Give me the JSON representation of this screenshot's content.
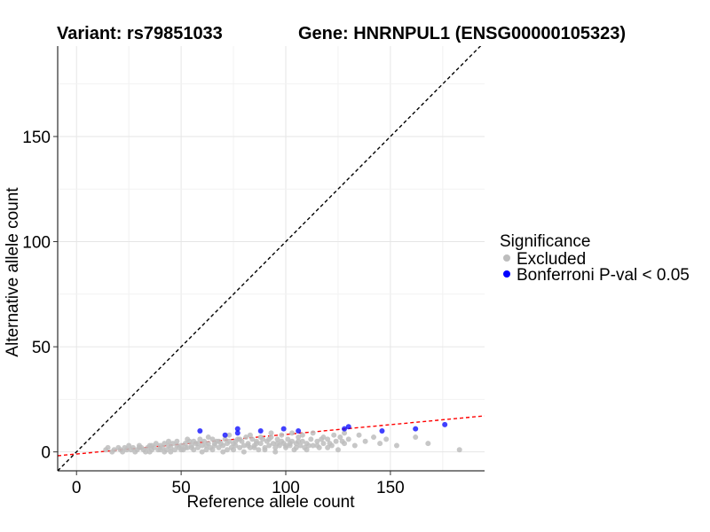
{
  "chart_data": {
    "type": "scatter",
    "title_left": "Variant: rs79851033",
    "title_right": "Gene: HNRNPUL1 (ENSG00000105323)",
    "xlabel": "Reference allele count",
    "ylabel": "Alternative allele count",
    "xlim": [
      -9,
      195
    ],
    "ylim": [
      -9,
      193
    ],
    "x_ticks": [
      0,
      50,
      100,
      150
    ],
    "y_ticks": [
      0,
      50,
      100,
      150
    ],
    "grid": true,
    "legend_title": "Significance",
    "legend_position": "right",
    "series": [
      {
        "name": "Excluded",
        "color": "#bdbdbd",
        "points": [
          [
            14,
            1
          ],
          [
            15,
            2
          ],
          [
            17,
            0
          ],
          [
            18,
            1
          ],
          [
            20,
            2
          ],
          [
            21,
            1
          ],
          [
            22,
            0
          ],
          [
            23,
            2
          ],
          [
            24,
            1
          ],
          [
            25,
            3
          ],
          [
            26,
            1
          ],
          [
            27,
            2
          ],
          [
            28,
            0
          ],
          [
            29,
            1
          ],
          [
            30,
            3
          ],
          [
            31,
            2
          ],
          [
            32,
            1
          ],
          [
            33,
            0
          ],
          [
            34,
            2
          ],
          [
            35,
            3
          ],
          [
            36,
            1
          ],
          [
            37,
            2
          ],
          [
            38,
            4
          ],
          [
            39,
            1
          ],
          [
            40,
            3
          ],
          [
            41,
            2
          ],
          [
            42,
            0
          ],
          [
            43,
            1
          ],
          [
            44,
            3
          ],
          [
            45,
            2
          ],
          [
            46,
            4
          ],
          [
            47,
            1
          ],
          [
            48,
            5
          ],
          [
            49,
            2
          ],
          [
            50,
            3
          ],
          [
            51,
            1
          ],
          [
            52,
            4
          ],
          [
            53,
            2
          ],
          [
            54,
            5
          ],
          [
            55,
            3
          ],
          [
            56,
            1
          ],
          [
            57,
            4
          ],
          [
            58,
            2
          ],
          [
            59,
            6
          ],
          [
            60,
            3
          ],
          [
            61,
            5
          ],
          [
            62,
            1
          ],
          [
            63,
            4
          ],
          [
            64,
            2
          ],
          [
            65,
            6
          ],
          [
            66,
            3
          ],
          [
            67,
            5
          ],
          [
            68,
            2
          ],
          [
            69,
            4
          ],
          [
            70,
            3
          ],
          [
            71,
            6
          ],
          [
            72,
            1
          ],
          [
            73,
            5
          ],
          [
            74,
            2
          ],
          [
            75,
            4
          ],
          [
            76,
            3
          ],
          [
            77,
            6
          ],
          [
            78,
            2
          ],
          [
            79,
            5
          ],
          [
            80,
            3
          ],
          [
            81,
            7
          ],
          [
            82,
            4
          ],
          [
            83,
            2
          ],
          [
            84,
            6
          ],
          [
            85,
            3
          ],
          [
            86,
            5
          ],
          [
            87,
            1
          ],
          [
            88,
            4
          ],
          [
            89,
            6
          ],
          [
            90,
            2
          ],
          [
            91,
            5
          ],
          [
            92,
            3
          ],
          [
            93,
            7
          ],
          [
            94,
            4
          ],
          [
            95,
            2
          ],
          [
            96,
            6
          ],
          [
            97,
            3
          ],
          [
            98,
            5
          ],
          [
            99,
            4
          ],
          [
            100,
            2
          ],
          [
            101,
            6
          ],
          [
            102,
            3
          ],
          [
            103,
            5
          ],
          [
            104,
            1
          ],
          [
            105,
            4
          ],
          [
            106,
            7
          ],
          [
            107,
            3
          ],
          [
            108,
            5
          ],
          [
            109,
            2
          ],
          [
            110,
            4
          ],
          [
            112,
            6
          ],
          [
            113,
            3
          ],
          [
            115,
            5
          ],
          [
            116,
            2
          ],
          [
            118,
            4
          ],
          [
            120,
            6
          ],
          [
            122,
            3
          ],
          [
            124,
            5
          ],
          [
            126,
            7
          ],
          [
            128,
            4
          ],
          [
            130,
            6
          ],
          [
            133,
            3
          ],
          [
            135,
            8
          ],
          [
            138,
            5
          ],
          [
            142,
            7
          ],
          [
            145,
            4
          ],
          [
            148,
            6
          ],
          [
            153,
            3
          ],
          [
            162,
            7
          ],
          [
            168,
            4
          ],
          [
            183,
            1
          ],
          [
            30,
            2
          ],
          [
            35,
            0
          ],
          [
            40,
            1
          ],
          [
            45,
            0
          ],
          [
            50,
            1
          ],
          [
            55,
            2
          ],
          [
            60,
            0
          ],
          [
            65,
            1
          ],
          [
            70,
            0
          ],
          [
            75,
            1
          ],
          [
            80,
            0
          ],
          [
            85,
            2
          ],
          [
            90,
            1
          ],
          [
            95,
            0
          ],
          [
            100,
            3
          ],
          [
            105,
            2
          ],
          [
            110,
            1
          ],
          [
            115,
            3
          ],
          [
            120,
            2
          ],
          [
            125,
            1
          ],
          [
            42,
            4
          ],
          [
            48,
            3
          ],
          [
            53,
            6
          ],
          [
            58,
            4
          ],
          [
            63,
            7
          ],
          [
            68,
            5
          ],
          [
            73,
            8
          ],
          [
            78,
            6
          ],
          [
            83,
            8
          ],
          [
            88,
            7
          ],
          [
            93,
            9
          ],
          [
            98,
            8
          ],
          [
            103,
            9
          ],
          [
            108,
            8
          ],
          [
            113,
            9
          ],
          [
            118,
            7
          ],
          [
            123,
            8
          ],
          [
            128,
            9
          ],
          [
            36,
            3
          ],
          [
            44,
            5
          ],
          [
            52,
            2
          ],
          [
            56,
            5
          ],
          [
            62,
            3
          ],
          [
            66,
            4
          ],
          [
            72,
            4
          ],
          [
            76,
            5
          ],
          [
            82,
            3
          ],
          [
            86,
            4
          ],
          [
            92,
            6
          ],
          [
            96,
            4
          ],
          [
            102,
            4
          ],
          [
            106,
            5
          ],
          [
            111,
            3
          ],
          [
            117,
            6
          ],
          [
            121,
            4
          ],
          [
            127,
            5
          ]
        ]
      },
      {
        "name": "Bonferroni P-val < 0.05",
        "color": "#0000ff",
        "points": [
          [
            59,
            10
          ],
          [
            71,
            8
          ],
          [
            77,
            11
          ],
          [
            77,
            9
          ],
          [
            88,
            10
          ],
          [
            99,
            11
          ],
          [
            106,
            10
          ],
          [
            128,
            11
          ],
          [
            130,
            12
          ],
          [
            146,
            10
          ],
          [
            162,
            11
          ],
          [
            176,
            13
          ]
        ]
      }
    ],
    "reference_lines": [
      {
        "name": "identity",
        "color": "#000000",
        "style": "dashed",
        "intercept": 0,
        "slope": 1
      },
      {
        "name": "fit",
        "color": "#ff0000",
        "style": "dashed",
        "intercept": -1,
        "slope": 0.093
      }
    ]
  }
}
